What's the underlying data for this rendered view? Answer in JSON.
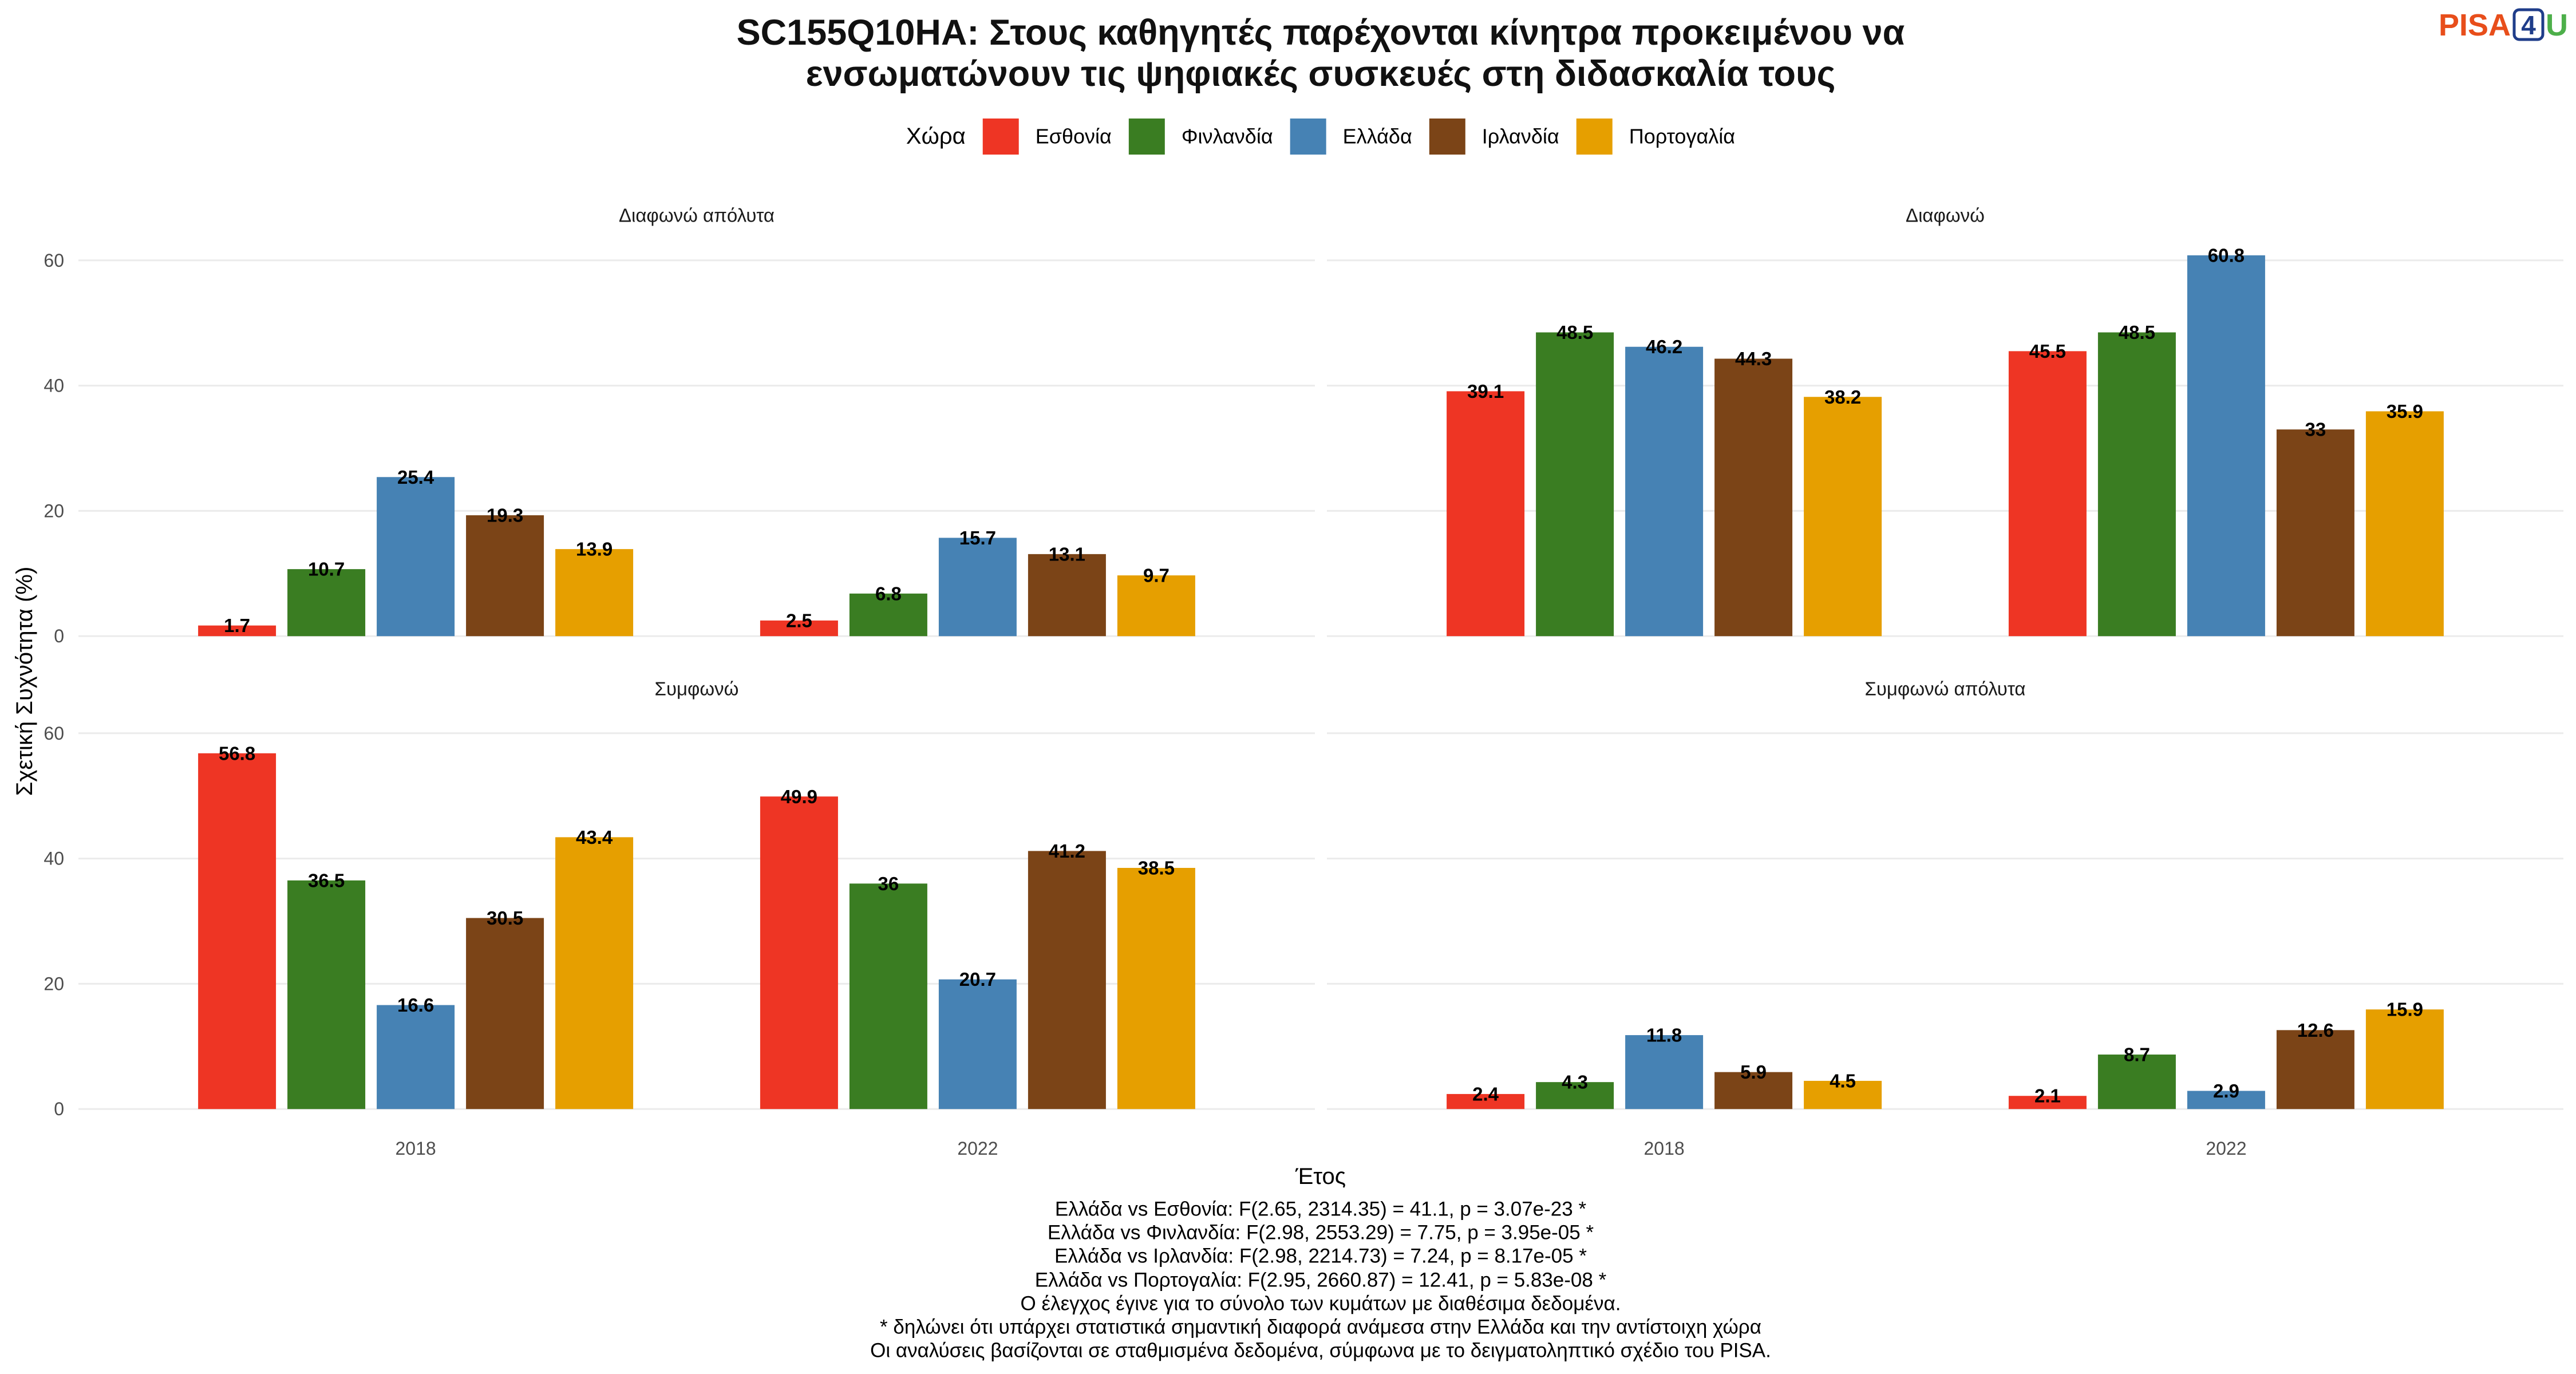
{
  "title": {
    "line1": "SC155Q10HA: Στους καθηγητές παρέχονται κίνητρα προκειμένου να",
    "line2": "ενσωματώνουν τις ψηφιακές συσκευές στη διδασκαλία τους"
  },
  "logo": {
    "text_a": "PISA",
    "text_b": "4",
    "text_c": "U"
  },
  "chart_data": {
    "type": "bar",
    "categories": [
      "2018",
      "2022"
    ],
    "xlabel": "Έτος",
    "ylabel": "Σχετική Συχνότητα (%)",
    "ylim": [
      -3,
      64
    ],
    "y_ticks": [
      0,
      20,
      40,
      60
    ],
    "grid": "horizontal",
    "legend_title": "Χώρα",
    "legend_position": "top",
    "series": [
      {
        "name": "Εσθονία",
        "color": "#EE3524"
      },
      {
        "name": "Φινλανδία",
        "color": "#3A7D22"
      },
      {
        "name": "Ελλάδα",
        "color": "#4682B4"
      },
      {
        "name": "Ιρλανδία",
        "color": "#7B4417"
      },
      {
        "name": "Πορτογαλία",
        "color": "#E69F00"
      }
    ],
    "facets": [
      {
        "name": "Διαφωνώ απόλυτα",
        "values": [
          [
            1.7,
            2.5
          ],
          [
            10.7,
            6.8
          ],
          [
            25.4,
            15.7
          ],
          [
            19.3,
            13.1
          ],
          [
            13.9,
            9.7
          ]
        ]
      },
      {
        "name": "Διαφωνώ",
        "values": [
          [
            39.1,
            45.5
          ],
          [
            48.5,
            48.5
          ],
          [
            46.2,
            60.8
          ],
          [
            44.3,
            33
          ],
          [
            38.2,
            35.9
          ]
        ]
      },
      {
        "name": "Συμφωνώ",
        "values": [
          [
            56.8,
            49.9
          ],
          [
            36.5,
            36
          ],
          [
            16.6,
            20.7
          ],
          [
            30.5,
            41.2
          ],
          [
            43.4,
            38.5
          ]
        ]
      },
      {
        "name": "Συμφωνώ απόλυτα",
        "values": [
          [
            2.4,
            2.1
          ],
          [
            4.3,
            8.7
          ],
          [
            11.8,
            2.9
          ],
          [
            5.9,
            12.6
          ],
          [
            4.5,
            15.9
          ]
        ]
      }
    ]
  },
  "footnotes": [
    "Ελλάδα vs Εσθονία: F(2.65, 2314.35) = 41.1, p = 3.07e-23 *",
    "Ελλάδα vs Φινλανδία: F(2.98, 2553.29) = 7.75, p = 3.95e-05 *",
    "Ελλάδα vs Ιρλανδία: F(2.98, 2214.73) = 7.24, p = 8.17e-05 *",
    "Ελλάδα vs Πορτογαλία: F(2.95, 2660.87) = 12.41, p = 5.83e-08 *",
    "Ο έλεγχος έγινε για το σύνολο των κυμάτων με διαθέσιμα δεδομένα.",
    "* δηλώνει ότι υπάρχει στατιστικά σημαντική διαφορά ανάμεσα στην Ελλάδα και την αντίστοιχη χώρα",
    "Οι αναλύσεις βασίζονται σε σταθμισμένα δεδομένα, σύμφωνα με το δειγματοληπτικό σχέδιο του PISA."
  ]
}
